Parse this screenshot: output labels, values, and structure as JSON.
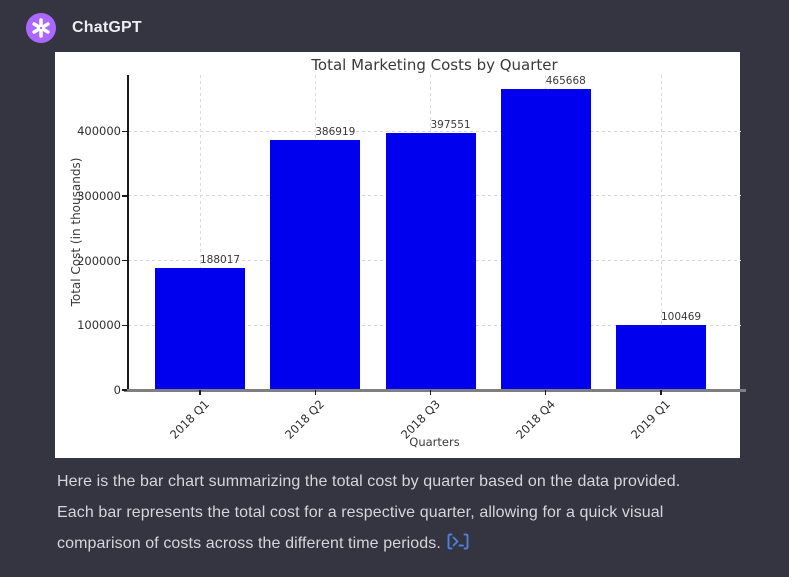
{
  "header": {
    "app_name": "ChatGPT"
  },
  "message": {
    "text": "Here is the bar chart summarizing the total cost by quarter based on the data provided. Each bar represents the total cost for a respective quarter, allowing for a quick visual comparison of costs across the different time periods.",
    "citation_icon": "code-citation-chip"
  },
  "chart_data": {
    "type": "bar",
    "title": "Total Marketing Costs by Quarter",
    "xlabel": "Quarters",
    "ylabel": "Total Cost (in thousands)",
    "categories": [
      "2018 Q1",
      "2018 Q2",
      "2018 Q3",
      "2018 Q4",
      "2019 Q1"
    ],
    "values": [
      188017,
      386919,
      397551,
      465668,
      100469
    ],
    "yticks": [
      0,
      100000,
      200000,
      300000,
      400000
    ],
    "ylim": [
      0,
      487000
    ],
    "bar_color": "#0000ee",
    "grid": "dashed, both axes",
    "legend": "none",
    "x_tick_rotation": 45
  },
  "colors": {
    "page_bg": "#343541",
    "logo_purple": "#ab68ff",
    "header_text": "#ececf1",
    "message_text": "#d5d6dd",
    "bar_blue": "#0000ee",
    "citation_blue": "#4e80d9"
  }
}
